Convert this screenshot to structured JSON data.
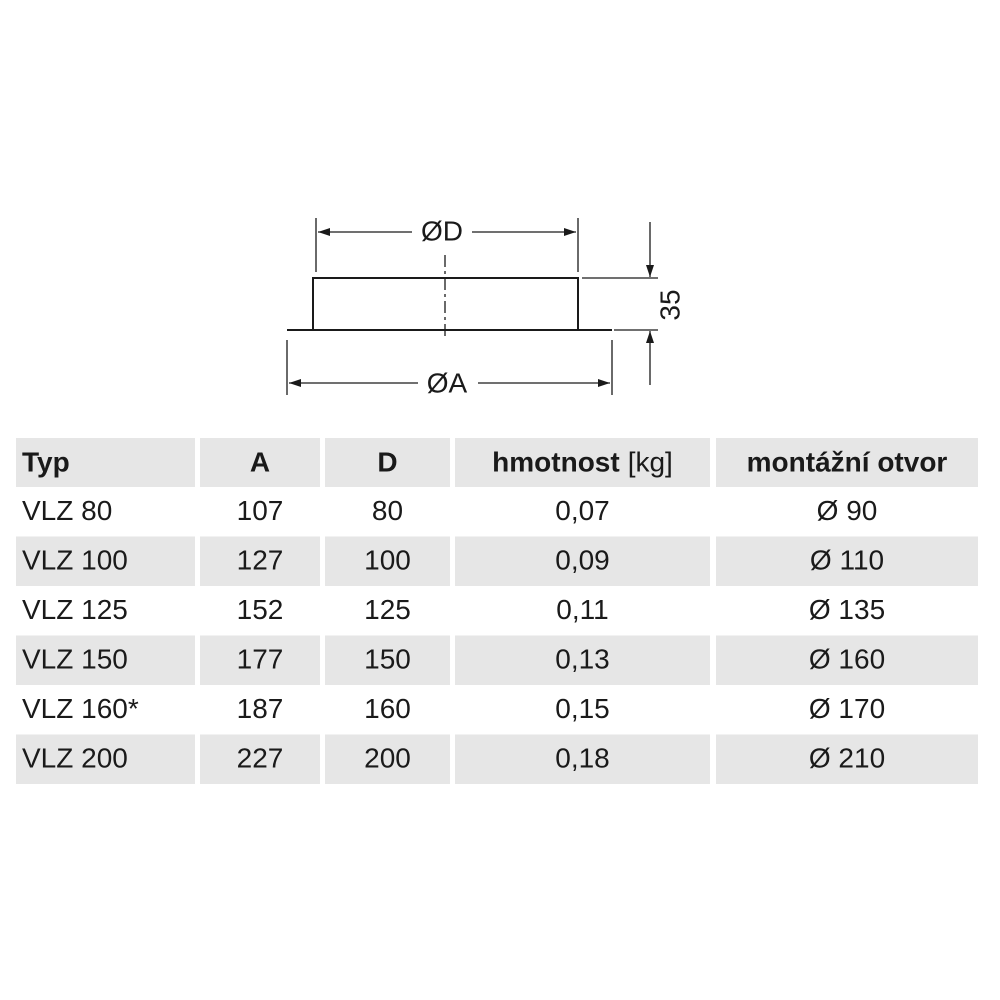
{
  "diagram": {
    "labels": {
      "diameter_d": "ØD",
      "diameter_a": "ØA",
      "height": "35"
    }
  },
  "table": {
    "columns": [
      {
        "label": "Typ"
      },
      {
        "label": "A"
      },
      {
        "label": "D"
      },
      {
        "label": "hmotnost",
        "unit": "[kg]"
      },
      {
        "label": "montážní otvor"
      }
    ],
    "rows": [
      [
        "VLZ 80",
        "107",
        "80",
        "0,07",
        "Ø 90"
      ],
      [
        "VLZ 100",
        "127",
        "100",
        "0,09",
        "Ø 110"
      ],
      [
        "VLZ 125",
        "152",
        "125",
        "0,11",
        "Ø 135"
      ],
      [
        "VLZ 150",
        "177",
        "150",
        "0,13",
        "Ø 160"
      ],
      [
        "VLZ 160*",
        "187",
        "160",
        "0,15",
        "Ø 170"
      ],
      [
        "VLZ 200",
        "227",
        "200",
        "0,18",
        "Ø 210"
      ]
    ]
  }
}
